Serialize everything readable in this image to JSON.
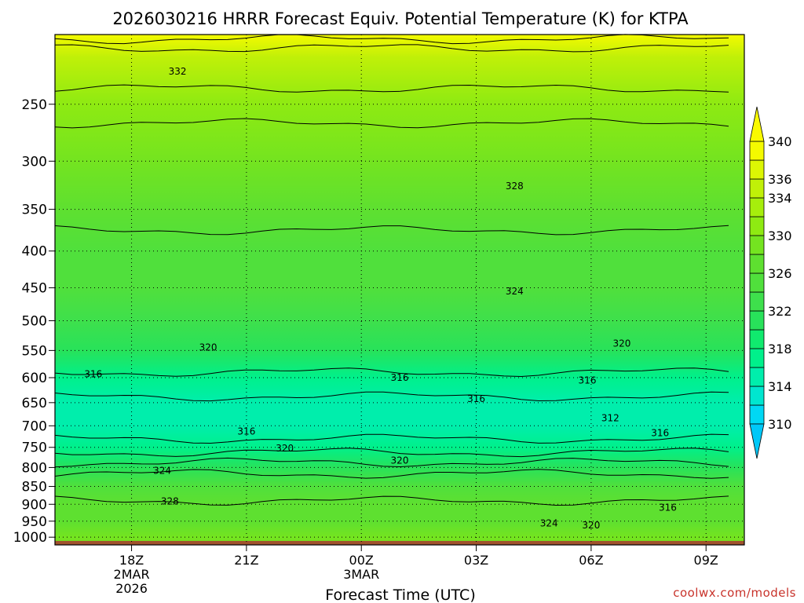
{
  "chart_data": {
    "type": "heatmap",
    "title": "2026030216 HRRR Forecast Equiv. Potential Temperature (K) for KTPA",
    "xlabel": "Forecast Time (UTC)",
    "ylabel": "",
    "x_ticks": [
      {
        "label": "18Z",
        "sub": [
          "2MAR",
          "2026"
        ],
        "hour": 18
      },
      {
        "label": "21Z",
        "sub": [],
        "hour": 21
      },
      {
        "label": "00Z",
        "sub": [
          "3MAR"
        ],
        "hour": 24
      },
      {
        "label": "03Z",
        "sub": [],
        "hour": 27
      },
      {
        "label": "06Z",
        "sub": [],
        "hour": 30
      },
      {
        "label": "09Z",
        "sub": [],
        "hour": 33
      }
    ],
    "xlim_hours": [
      16,
      34
    ],
    "y_ticks": [
      250,
      300,
      350,
      400,
      450,
      500,
      550,
      600,
      650,
      700,
      750,
      800,
      850,
      900,
      950,
      1000
    ],
    "ylim_hpa": [
      200,
      1025
    ],
    "y_scale": "log",
    "y_inverted": true,
    "grid": true,
    "colorbar": {
      "levels": [
        310,
        312,
        314,
        316,
        318,
        320,
        322,
        324,
        326,
        328,
        330,
        332,
        334,
        336,
        338,
        340
      ],
      "labels": [
        310,
        314,
        318,
        322,
        326,
        330,
        334,
        336,
        340
      ],
      "colors": [
        "#00d8f4",
        "#00e6cf",
        "#00eeac",
        "#00f08b",
        "#10ea6e",
        "#28e25a",
        "#3ee04c",
        "#50e03c",
        "#5ee030",
        "#74e420",
        "#8eea12",
        "#a6ee0c",
        "#c0f008",
        "#dcf604",
        "#f4fa00"
      ],
      "placement": "right"
    },
    "profile": [
      {
        "p": 200,
        "theta_e": 339
      },
      {
        "p": 215,
        "theta_e": 334
      },
      {
        "p": 250,
        "theta_e": 331
      },
      {
        "p": 300,
        "theta_e": 328
      },
      {
        "p": 350,
        "theta_e": 326.5
      },
      {
        "p": 400,
        "theta_e": 325.5
      },
      {
        "p": 450,
        "theta_e": 324
      },
      {
        "p": 500,
        "theta_e": 322
      },
      {
        "p": 550,
        "theta_e": 320
      },
      {
        "p": 600,
        "theta_e": 317.5
      },
      {
        "p": 650,
        "theta_e": 315.5
      },
      {
        "p": 700,
        "theta_e": 314.5
      },
      {
        "p": 750,
        "theta_e": 317
      },
      {
        "p": 800,
        "theta_e": 321
      },
      {
        "p": 850,
        "theta_e": 324
      },
      {
        "p": 900,
        "theta_e": 326.5
      },
      {
        "p": 950,
        "theta_e": 327.5
      },
      {
        "p": 1000,
        "theta_e": 328
      },
      {
        "p": 1025,
        "theta_e": 328
      }
    ],
    "contour_labels": [
      {
        "text": "332",
        "hour": 19.2,
        "p": 225
      },
      {
        "text": "328",
        "hour": 28.0,
        "p": 325
      },
      {
        "text": "324",
        "hour": 28.0,
        "p": 455
      },
      {
        "text": "320",
        "hour": 20.0,
        "p": 545
      },
      {
        "text": "320",
        "hour": 30.8,
        "p": 538
      },
      {
        "text": "316",
        "hour": 17.0,
        "p": 593
      },
      {
        "text": "316",
        "hour": 25.0,
        "p": 600
      },
      {
        "text": "316",
        "hour": 29.9,
        "p": 605
      },
      {
        "text": "316",
        "hour": 27.0,
        "p": 642
      },
      {
        "text": "312",
        "hour": 30.5,
        "p": 683
      },
      {
        "text": "316",
        "hour": 21.0,
        "p": 713
      },
      {
        "text": "316",
        "hour": 31.8,
        "p": 716
      },
      {
        "text": "320",
        "hour": 22.0,
        "p": 752
      },
      {
        "text": "320",
        "hour": 25.0,
        "p": 782
      },
      {
        "text": "324",
        "hour": 18.8,
        "p": 808
      },
      {
        "text": "328",
        "hour": 19.0,
        "p": 892
      },
      {
        "text": "316",
        "hour": 32.0,
        "p": 910
      },
      {
        "text": "324",
        "hour": 28.9,
        "p": 957
      },
      {
        "text": "320",
        "hour": 30.0,
        "p": 963
      }
    ]
  },
  "footer": {
    "credit": "coolwx.com/models"
  }
}
